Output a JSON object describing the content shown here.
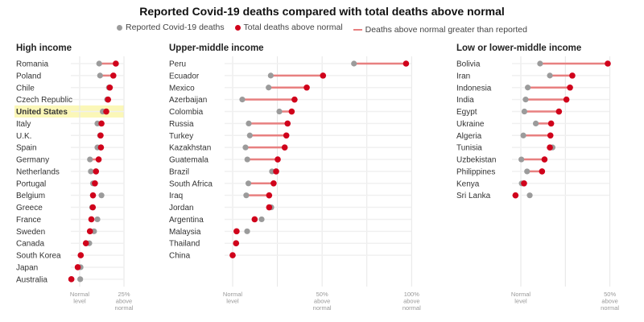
{
  "colors": {
    "reported": "#9b9b9b",
    "excess": "#d0021b",
    "connector": "#e88080",
    "highlight": "#fbf7b8",
    "grid": "#e6e6e6"
  },
  "chart_data": {
    "type": "scatter",
    "variant": "dumbbell",
    "title": "Reported Covid-19 deaths compared with total deaths above normal",
    "legend": {
      "placement": "top",
      "reported": "Reported Covid-19 deaths",
      "excess": "Total deaths above normal",
      "connector": "Deaths above normal greater than reported"
    },
    "grid": true,
    "panels": [
      {
        "title": "High income",
        "xlim": [
          -5,
          25
        ],
        "ticks": [
          {
            "value": 0,
            "label": [
              "Normal",
              "level"
            ]
          },
          {
            "value": 25,
            "label": [
              "25%",
              "above",
              "normal"
            ]
          }
        ],
        "highlight": "United States",
        "rows": [
          {
            "country": "Romania",
            "reported": 11,
            "excess": 20.4
          },
          {
            "country": "Poland",
            "reported": 11.5,
            "excess": 19
          },
          {
            "country": "Chile",
            "reported": 16.5,
            "excess": 17
          },
          {
            "country": "Czech Republic",
            "reported": 15.5,
            "excess": 16
          },
          {
            "country": "United States",
            "reported": 13,
            "excess": 15
          },
          {
            "country": "Italy",
            "reported": 10,
            "excess": 12.3
          },
          {
            "country": "U.K.",
            "reported": 11.5,
            "excess": 11.8
          },
          {
            "country": "Spain",
            "reported": 10,
            "excess": 12
          },
          {
            "country": "Germany",
            "reported": 5.8,
            "excess": 10.7
          },
          {
            "country": "Netherlands",
            "reported": 6.3,
            "excess": 9.2
          },
          {
            "country": "Portugal",
            "reported": 7.5,
            "excess": 8.6
          },
          {
            "country": "Belgium",
            "reported": 12.3,
            "excess": 7.5
          },
          {
            "country": "Greece",
            "reported": 7,
            "excess": 7.4
          },
          {
            "country": "France",
            "reported": 10,
            "excess": 6.6
          },
          {
            "country": "Sweden",
            "reported": 8.1,
            "excess": 5.8
          },
          {
            "country": "Canada",
            "reported": 5.4,
            "excess": 3.5
          },
          {
            "country": "South Korea",
            "reported": 0.5,
            "excess": 0.6
          },
          {
            "country": "Japan",
            "reported": 0.5,
            "excess": -1.1
          },
          {
            "country": "Australia",
            "reported": 0.3,
            "excess": -4.7
          }
        ]
      },
      {
        "title": "Upper-middle income",
        "xlim": [
          -5,
          100
        ],
        "ticks": [
          {
            "value": 0,
            "label": [
              "Normal",
              "level"
            ]
          },
          {
            "value": 25,
            "label": []
          },
          {
            "value": 50,
            "label": [
              "50%",
              "above",
              "normal"
            ]
          },
          {
            "value": 75,
            "label": []
          },
          {
            "value": 100,
            "label": [
              "100%",
              "above",
              "normal"
            ]
          }
        ],
        "rows": [
          {
            "country": "Peru",
            "reported": 67.8,
            "excess": 96.9
          },
          {
            "country": "Ecuador",
            "reported": 21.3,
            "excess": 50.5
          },
          {
            "country": "Mexico",
            "reported": 20.1,
            "excess": 41.4
          },
          {
            "country": "Azerbaijan",
            "reported": 5.4,
            "excess": 34.6
          },
          {
            "country": "Colombia",
            "reported": 26.1,
            "excess": 33
          },
          {
            "country": "Russia",
            "reported": 9,
            "excess": 30.7
          },
          {
            "country": "Turkey",
            "reported": 9.6,
            "excess": 30
          },
          {
            "country": "Kazakhstan",
            "reported": 7.2,
            "excess": 29.1
          },
          {
            "country": "Guatemala",
            "reported": 8.2,
            "excess": 25.2
          },
          {
            "country": "Brazil",
            "reported": 22,
            "excess": 24.3
          },
          {
            "country": "South Africa",
            "reported": 8.8,
            "excess": 22.9
          },
          {
            "country": "Iraq",
            "reported": 7.6,
            "excess": 20.4
          },
          {
            "country": "Jordan",
            "reported": 21.6,
            "excess": 20.4
          },
          {
            "country": "Argentina",
            "reported": 16.2,
            "excess": 12.3
          },
          {
            "country": "Malaysia",
            "reported": 8.1,
            "excess": 2.2
          },
          {
            "country": "Thailand",
            "reported": 2,
            "excess": 1.9
          },
          {
            "country": "China",
            "reported": 0,
            "excess": 0
          }
        ]
      },
      {
        "title": "Low or lower-middle income",
        "xlim": [
          -5,
          50
        ],
        "ticks": [
          {
            "value": 0,
            "label": [
              "Normal",
              "level"
            ]
          },
          {
            "value": 25,
            "label": []
          },
          {
            "value": 50,
            "label": [
              "50%",
              "above",
              "normal"
            ]
          }
        ],
        "rows": [
          {
            "country": "Bolivia",
            "reported": 10.8,
            "excess": 48.8
          },
          {
            "country": "Iran",
            "reported": 16.3,
            "excess": 28.9
          },
          {
            "country": "Indonesia",
            "reported": 3.9,
            "excess": 27.6
          },
          {
            "country": "India",
            "reported": 2.7,
            "excess": 25.6
          },
          {
            "country": "Egypt",
            "reported": 2,
            "excess": 21.4
          },
          {
            "country": "Ukraine",
            "reported": 8.4,
            "excess": 17
          },
          {
            "country": "Algeria",
            "reported": 1.4,
            "excess": 16.6
          },
          {
            "country": "Tunisia",
            "reported": 17.8,
            "excess": 16.3
          },
          {
            "country": "Uzbekistan",
            "reported": 0.3,
            "excess": 13.3
          },
          {
            "country": "Philippines",
            "reported": 3.5,
            "excess": 11.9
          },
          {
            "country": "Kenya",
            "reported": 0.5,
            "excess": 1.8
          },
          {
            "country": "Sri Lanka",
            "reported": 5,
            "excess": -3
          }
        ]
      }
    ]
  }
}
